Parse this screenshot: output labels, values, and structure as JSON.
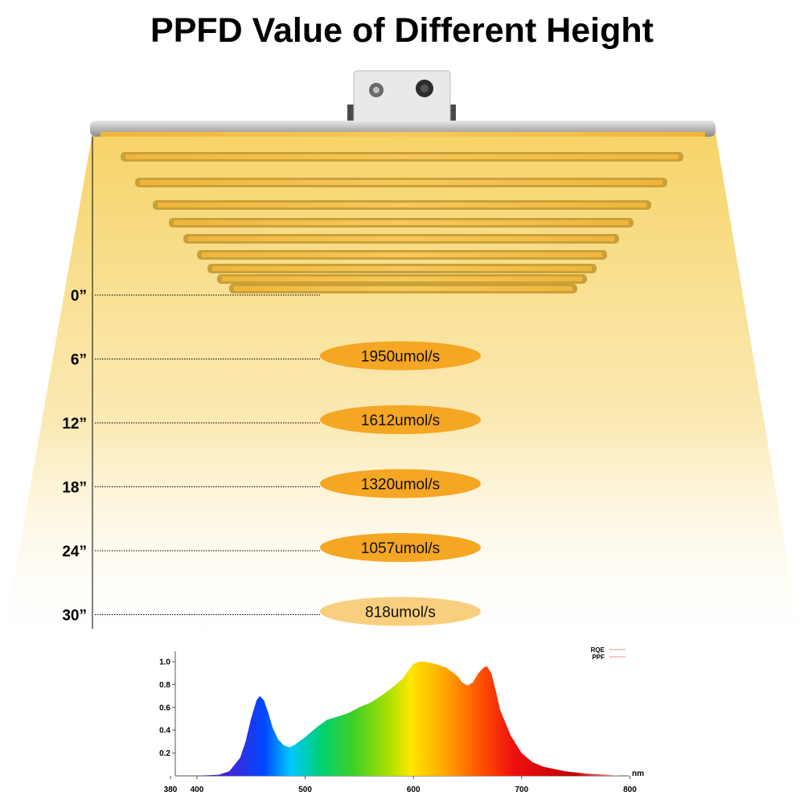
{
  "title": "PPFD Value of Different Height",
  "chart_data": [
    {
      "type": "bar",
      "title": "PPFD Value of Different Height",
      "categories": [
        "0”",
        "6”",
        "12”",
        "18”",
        "24”",
        "30”"
      ],
      "heights_inch": [
        0,
        6,
        12,
        18,
        24,
        30
      ],
      "series": [
        {
          "values": [
            null,
            1950,
            1612,
            1320,
            1057,
            818
          ],
          "labels": [
            "",
            "1950umol/s",
            "1612umol/s",
            "1320umol/s",
            "1057umol/s",
            "818umol/s"
          ]
        }
      ],
      "colors": {
        "badge": "#f5a623",
        "badge_light": "#f9cf7f",
        "light": "#f7d46a"
      }
    },
    {
      "type": "area",
      "xlabel": "nm",
      "x_ticks": [
        "380",
        "400",
        "500",
        "600",
        "700",
        "800"
      ],
      "y_ticks": [
        "0.2",
        "0.4",
        "0.6",
        "0.8",
        "1.0"
      ],
      "xlim": [
        380,
        800
      ],
      "ylim": [
        0,
        1.05
      ],
      "legend": [
        "RQE",
        "PPF"
      ],
      "legend_position": "top-right",
      "series": [
        {
          "x": [
            380,
            400,
            420,
            430,
            440,
            445,
            450,
            455,
            458,
            462,
            466,
            470,
            475,
            480,
            485,
            490,
            500,
            510,
            520,
            530,
            540,
            550,
            560,
            570,
            580,
            590,
            595,
            600,
            605,
            610,
            620,
            630,
            640,
            645,
            650,
            655,
            660,
            665,
            668,
            672,
            676,
            680,
            690,
            700,
            710,
            720,
            740,
            760,
            780,
            790
          ],
          "values": [
            0,
            0,
            0.01,
            0.04,
            0.16,
            0.3,
            0.5,
            0.66,
            0.7,
            0.66,
            0.55,
            0.42,
            0.32,
            0.27,
            0.25,
            0.27,
            0.34,
            0.42,
            0.49,
            0.52,
            0.55,
            0.6,
            0.64,
            0.7,
            0.77,
            0.85,
            0.92,
            0.98,
            1.0,
            1.0,
            0.98,
            0.95,
            0.88,
            0.82,
            0.79,
            0.82,
            0.9,
            0.95,
            0.96,
            0.9,
            0.75,
            0.58,
            0.35,
            0.2,
            0.12,
            0.08,
            0.04,
            0.02,
            0.01,
            0
          ]
        }
      ]
    }
  ]
}
